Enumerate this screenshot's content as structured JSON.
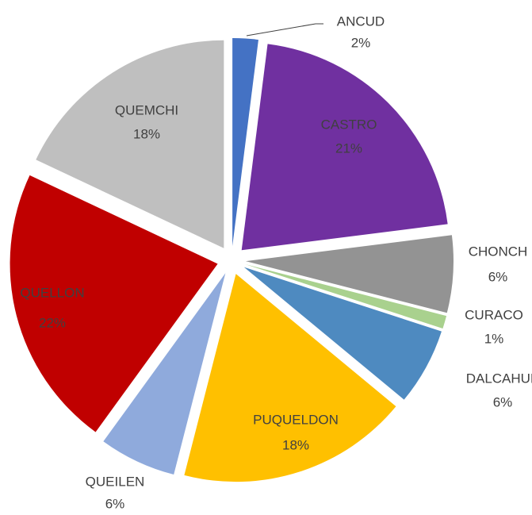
{
  "chart_data": {
    "type": "pie",
    "categories": [
      "ANCUD",
      "CASTRO",
      "CHONCH",
      "CURACO",
      "DALCAHUE",
      "PUQUELDON",
      "QUEILEN",
      "QUELLON",
      "QUEMCHI"
    ],
    "values": [
      2,
      21,
      6,
      1,
      6,
      18,
      6,
      22,
      18
    ],
    "value_labels": [
      "2%",
      "21%",
      "6%",
      "1%",
      "6%",
      "18%",
      "6%",
      "22%",
      "18%"
    ],
    "colors": [
      "#4472c4",
      "#7030a0",
      "#939393",
      "#a9d18e",
      "#4e8ac0",
      "#ffc000",
      "#8faadc",
      "#c00000",
      "#bfbfbf"
    ]
  }
}
